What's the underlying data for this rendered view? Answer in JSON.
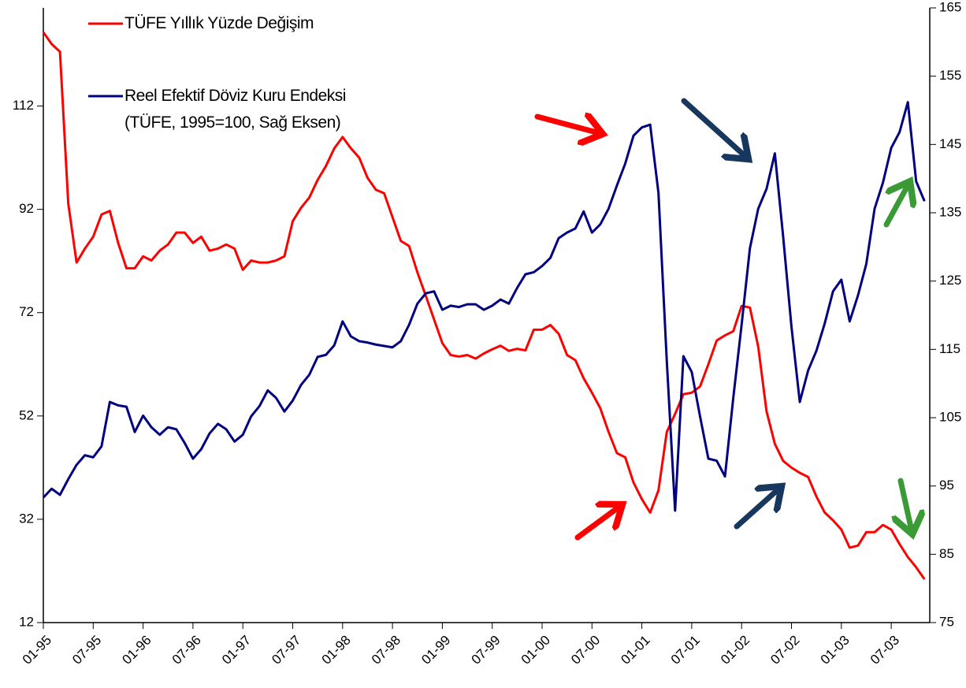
{
  "chart_data": {
    "type": "line",
    "categories": [
      "01-95",
      null,
      null,
      null,
      null,
      null,
      "07-95",
      null,
      null,
      null,
      null,
      null,
      "01-96",
      null,
      null,
      null,
      null,
      null,
      "07-96",
      null,
      null,
      null,
      null,
      null,
      "01-97",
      null,
      null,
      null,
      null,
      null,
      "07-97",
      null,
      null,
      null,
      null,
      null,
      "01-98",
      null,
      null,
      null,
      null,
      null,
      "07-98",
      null,
      null,
      null,
      null,
      null,
      "01-99",
      null,
      null,
      null,
      null,
      null,
      "07-99",
      null,
      null,
      null,
      null,
      null,
      "01-00",
      null,
      null,
      null,
      null,
      null,
      "07-00",
      null,
      null,
      null,
      null,
      null,
      "01-01",
      null,
      null,
      null,
      null,
      null,
      "07-01",
      null,
      null,
      null,
      null,
      null,
      "01-02",
      null,
      null,
      null,
      null,
      null,
      "07-02",
      null,
      null,
      null,
      null,
      null,
      "01-03",
      null,
      null,
      null,
      null,
      null,
      "07-03",
      null,
      null,
      null,
      null
    ],
    "series": [
      {
        "name": "TÜFE Yıllık Yüzde Değişim",
        "color": "#ff0000",
        "axis": "y",
        "values": [
          126.3,
          124,
          122.5,
          93.1,
          81.7,
          84.4,
          86.7,
          91,
          91.7,
          85.5,
          80.6,
          80.6,
          82.9,
          82.1,
          84,
          85.2,
          87.5,
          87.5,
          85.5,
          86.7,
          84,
          84.4,
          85.2,
          84.4,
          80.3,
          82.1,
          81.7,
          81.7,
          82.1,
          82.9,
          89.7,
          92.3,
          94.3,
          97.7,
          100.4,
          103.8,
          106,
          103.8,
          102,
          98.1,
          95.8,
          95.1,
          90.5,
          85.9,
          84.9,
          79.8,
          75.3,
          70.7,
          66.1,
          63.8,
          63.5,
          63.8,
          63.1,
          64.1,
          64.9,
          65.6,
          64.6,
          65,
          64.7,
          68.7,
          68.7,
          69.6,
          67.9,
          63.8,
          62.8,
          59.3,
          56.5,
          53.5,
          48.9,
          44.8,
          44,
          39.1,
          35.9,
          33.3,
          37.6,
          48.9,
          52.4,
          56.2,
          56.5,
          57.7,
          62,
          66.6,
          67.6,
          68.4,
          73.3,
          73,
          65.4,
          52.9,
          46.6,
          43.3,
          42,
          41,
          40.2,
          36.4,
          33.3,
          31.8,
          30,
          26.5,
          26.9,
          29.5,
          29.5,
          30.9,
          30,
          27.2,
          24.7,
          22.7,
          20.4
        ]
      },
      {
        "name": "Reel Efektif Döviz Kuru Endeksi\n(TÜFE, 1995=100, Sağ Eksen)",
        "color": "#000080",
        "axis": "y2",
        "values": [
          93.3,
          94.6,
          93.7,
          96,
          98.1,
          99.5,
          99.2,
          100.8,
          107.3,
          106.8,
          106.6,
          102.9,
          105.3,
          103.6,
          102.5,
          103.6,
          103.3,
          101.3,
          99,
          100.4,
          102.7,
          104.1,
          103.3,
          101.5,
          102.5,
          105.2,
          106.7,
          109,
          107.9,
          105.9,
          107.5,
          109.8,
          111.3,
          113.9,
          114.2,
          115.6,
          119.1,
          116.9,
          116.2,
          116,
          115.7,
          115.5,
          115.3,
          116.2,
          118.6,
          121.7,
          123.2,
          123.5,
          120.8,
          121.4,
          121.2,
          121.6,
          121.6,
          120.8,
          121.4,
          122.3,
          121.7,
          124,
          126,
          126.3,
          127.2,
          128.4,
          131.3,
          132.1,
          132.7,
          135.2,
          132.1,
          133.3,
          135.6,
          139,
          142.2,
          146.3,
          147.5,
          147.9,
          137.9,
          113.3,
          91.4,
          114,
          111.7,
          105.2,
          99,
          98.7,
          96.4,
          107.9,
          118.6,
          129.8,
          135.6,
          138.5,
          143.7,
          131.5,
          118.3,
          107.3,
          111.9,
          114.8,
          118.8,
          123.5,
          125.2,
          119.1,
          122.9,
          127.5,
          135.6,
          139.4,
          144.5,
          146.8,
          151.2,
          139.6,
          136.7
        ]
      }
    ],
    "ylim": [
      12,
      131
    ],
    "yticks": [
      12,
      32,
      52,
      72,
      92,
      112
    ],
    "y2lim": [
      75,
      165
    ],
    "y2ticks": [
      75,
      85,
      95,
      105,
      115,
      125,
      135,
      145,
      155,
      165
    ],
    "grid": false
  }
}
